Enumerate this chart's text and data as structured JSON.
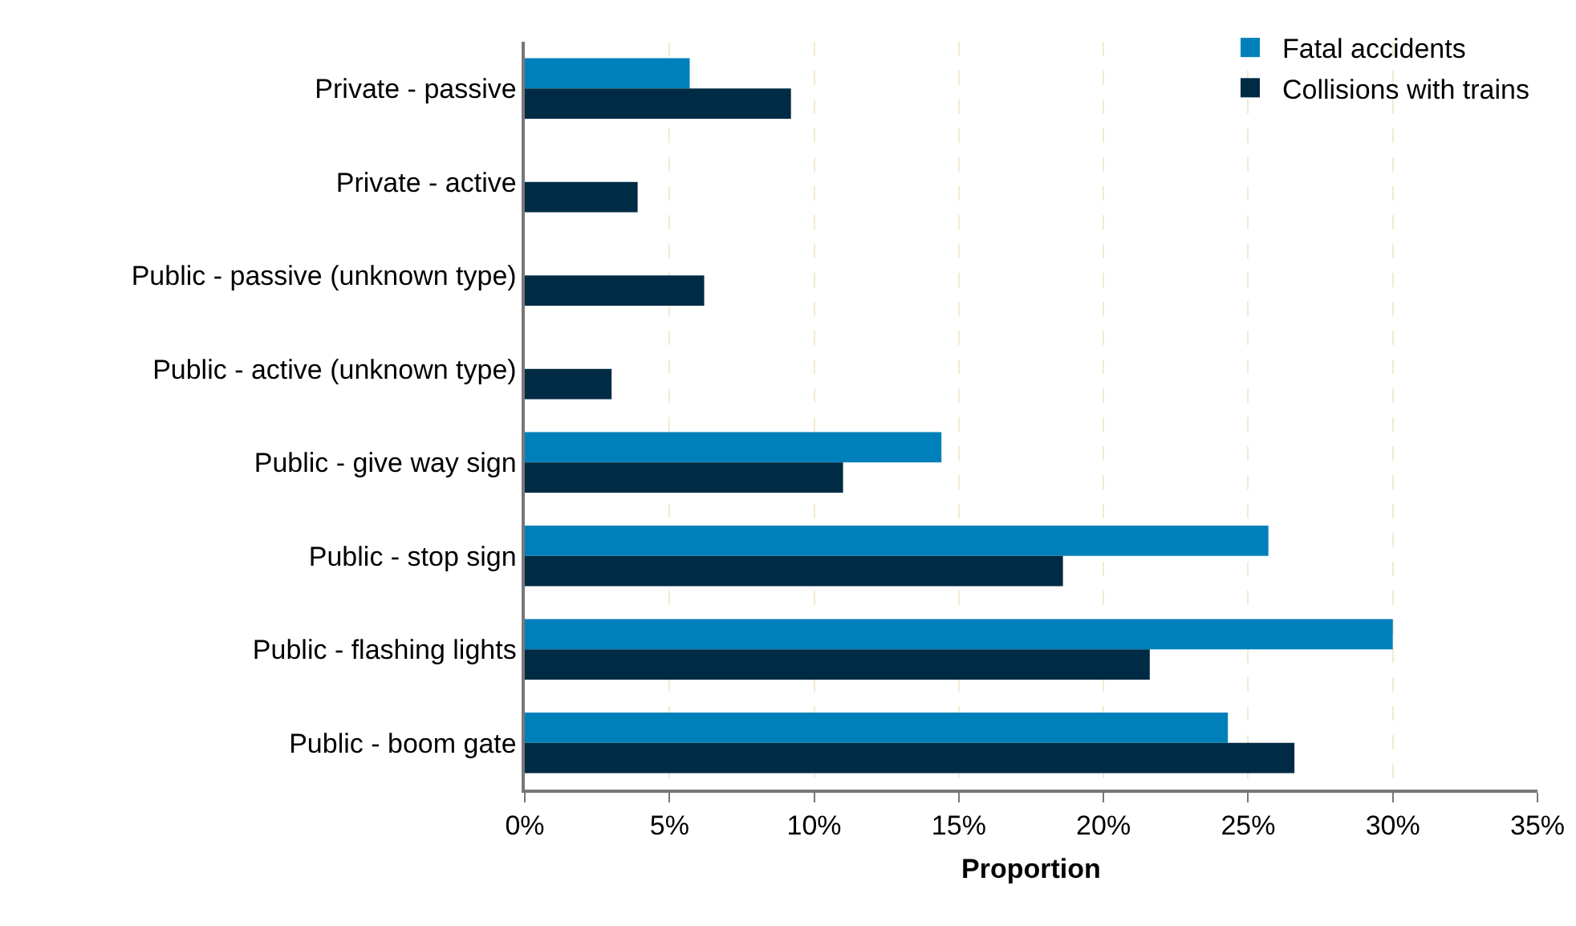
{
  "chart_data": {
    "type": "bar",
    "orientation": "horizontal",
    "xlabel": "Proportion",
    "categories": [
      "Private - passive",
      "Private - active",
      "Public - passive (unknown type)",
      "Public - active (unknown type)",
      "Public - give way sign",
      "Public - stop sign",
      "Public - flashing lights",
      "Public - boom gate"
    ],
    "series": [
      {
        "name": "Fatal accidents",
        "color": "#0080bb",
        "values": [
          5.7,
          null,
          null,
          null,
          14.4,
          25.7,
          30.0,
          24.3
        ]
      },
      {
        "name": "Collisions with trains",
        "color": "#002b45",
        "values": [
          9.2,
          3.9,
          6.2,
          3.0,
          11.0,
          18.6,
          21.6,
          26.6
        ]
      }
    ],
    "xlim": [
      0,
      35
    ],
    "xticks": [
      {
        "value": 0,
        "label": "0%"
      },
      {
        "value": 5,
        "label": "5%"
      },
      {
        "value": 10,
        "label": "10%"
      },
      {
        "value": 15,
        "label": "15%"
      },
      {
        "value": 20,
        "label": "20%"
      },
      {
        "value": 25,
        "label": "25%"
      },
      {
        "value": 30,
        "label": "30%"
      },
      {
        "value": 35,
        "label": "35%"
      }
    ],
    "grid": "x",
    "legend": "top right"
  }
}
